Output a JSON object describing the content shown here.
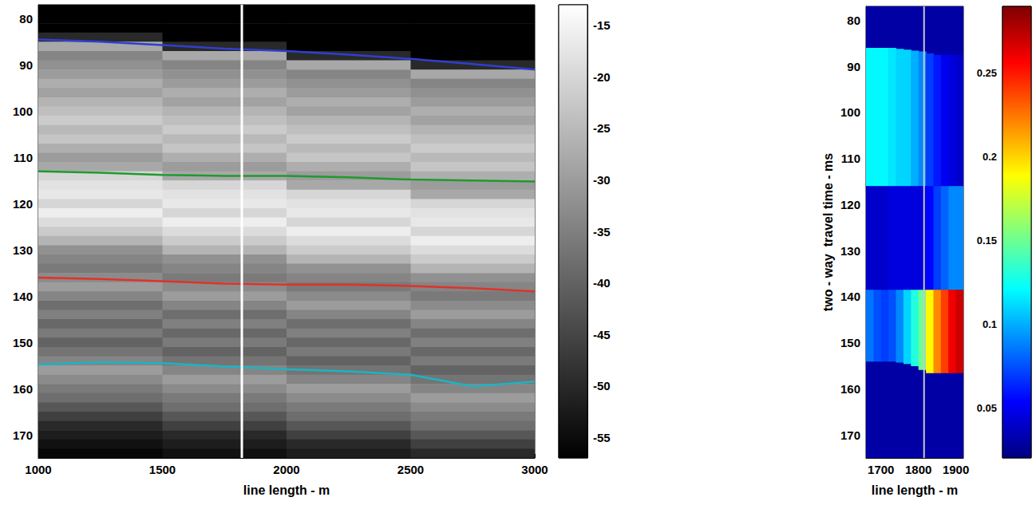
{
  "chart_data": [
    {
      "type": "heatmap",
      "x_label": "line length - m",
      "xlim": [
        1000,
        3000
      ],
      "xticks": [
        1000,
        1500,
        2000,
        2500,
        3000
      ],
      "ylim": [
        77,
        175
      ],
      "yticks": [
        80,
        90,
        100,
        110,
        120,
        130,
        140,
        150,
        160,
        170
      ],
      "grid": false,
      "x_edges": [
        1000,
        1500,
        2000,
        2500,
        3000
      ],
      "y_edges": [
        77,
        79,
        81,
        83,
        85,
        87,
        89,
        91,
        93,
        95,
        97,
        99,
        101,
        103,
        105,
        107,
        109,
        111,
        113,
        115,
        117,
        119,
        121,
        123,
        125,
        127,
        129,
        131,
        133,
        135,
        137,
        139,
        141,
        143,
        145,
        147,
        149,
        151,
        153,
        155,
        157,
        159,
        161,
        163,
        165,
        167,
        169,
        171,
        173,
        175
      ],
      "cells": [
        [
          -57,
          -57,
          -57,
          -57
        ],
        [
          -57,
          -57,
          -57,
          -57
        ],
        [
          -57,
          -57,
          -57,
          -57
        ],
        [
          -50,
          -57,
          -57,
          -57
        ],
        [
          -28,
          -50,
          -57,
          -57
        ],
        [
          -34,
          -28,
          -50,
          -57
        ],
        [
          -32,
          -34,
          -28,
          -50
        ],
        [
          -30,
          -32,
          -34,
          -28
        ],
        [
          -27,
          -30,
          -32,
          -34
        ],
        [
          -29,
          -27,
          -30,
          -32
        ],
        [
          -26,
          -29,
          -27,
          -30
        ],
        [
          -24,
          -26,
          -29,
          -27
        ],
        [
          -22,
          -24,
          -26,
          -29
        ],
        [
          -25,
          -22,
          -24,
          -26
        ],
        [
          -23,
          -25,
          -22,
          -24
        ],
        [
          -27,
          -23,
          -25,
          -22
        ],
        [
          -30,
          -27,
          -23,
          -25
        ],
        [
          -28,
          -30,
          -27,
          -23
        ],
        [
          -20,
          -28,
          -30,
          -27
        ],
        [
          -18,
          -20,
          -28,
          -30
        ],
        [
          -17,
          -18,
          -20,
          -28
        ],
        [
          -20,
          -17,
          -18,
          -20
        ],
        [
          -16,
          -20,
          -17,
          -18
        ],
        [
          -19,
          -16,
          -20,
          -17
        ],
        [
          -22,
          -19,
          -16,
          -20
        ],
        [
          -26,
          -22,
          -19,
          -16
        ],
        [
          -32,
          -26,
          -22,
          -19
        ],
        [
          -34,
          -32,
          -26,
          -22
        ],
        [
          -36,
          -34,
          -32,
          -26
        ],
        [
          -33,
          -36,
          -34,
          -32
        ],
        [
          -30,
          -33,
          -36,
          -34
        ],
        [
          -34,
          -30,
          -33,
          -36
        ],
        [
          -38,
          -34,
          -30,
          -33
        ],
        [
          -35,
          -38,
          -34,
          -30
        ],
        [
          -39,
          -35,
          -38,
          -34
        ],
        [
          -36,
          -39,
          -35,
          -38
        ],
        [
          -40,
          -36,
          -39,
          -35
        ],
        [
          -37,
          -40,
          -36,
          -39
        ],
        [
          -34,
          -37,
          -40,
          -36
        ],
        [
          -30,
          -34,
          -37,
          -40
        ],
        [
          -33,
          -30,
          -34,
          -37
        ],
        [
          -36,
          -33,
          -30,
          -34
        ],
        [
          -38,
          -36,
          -33,
          -30
        ],
        [
          -42,
          -38,
          -36,
          -33
        ],
        [
          -46,
          -42,
          -38,
          -36
        ],
        [
          -50,
          -46,
          -42,
          -38
        ],
        [
          -52,
          -50,
          -46,
          -42
        ],
        [
          -54,
          -52,
          -50,
          -46
        ],
        [
          -56,
          -54,
          -52,
          -50
        ]
      ],
      "clim": [
        -57,
        -13
      ],
      "cticks": [
        -15,
        -20,
        -25,
        -30,
        -35,
        -40,
        -45,
        -50,
        -55
      ],
      "lines": [
        {
          "color": "#2f3fd0",
          "x": [
            1000,
            1250,
            1500,
            1750,
            2000,
            2250,
            2500,
            2750,
            3000
          ],
          "y": [
            84.5,
            85,
            85.7,
            86.5,
            87,
            87.8,
            88.7,
            89.8,
            91
          ]
        },
        {
          "color": "#1f9a2e",
          "x": [
            1000,
            1250,
            1500,
            1750,
            2000,
            2250,
            2500,
            2750,
            3000
          ],
          "y": [
            113,
            113.3,
            113.8,
            114,
            114,
            114.3,
            114.8,
            115,
            115.2
          ]
        },
        {
          "color": "#e0322a",
          "x": [
            1000,
            1250,
            1500,
            1750,
            2000,
            2250,
            2500,
            2750,
            3000
          ],
          "y": [
            136,
            136.3,
            136.8,
            137.3,
            137.5,
            137.5,
            137.8,
            138.3,
            139
          ]
        },
        {
          "color": "#19b5c4",
          "x": [
            1000,
            1250,
            1500,
            1750,
            2000,
            2250,
            2500,
            2750,
            3000
          ],
          "y": [
            154.8,
            154.3,
            154.5,
            155.2,
            155.8,
            156.3,
            157,
            159.5,
            158.5
          ]
        }
      ],
      "vertical_line": {
        "x": 1820,
        "color": "#ffffff"
      }
    },
    {
      "type": "heatmap",
      "x_label": "line length - m",
      "y_label": "two - way  travel time - ms",
      "xlim": [
        1660,
        1920
      ],
      "xticks": [
        1700,
        1800,
        1900
      ],
      "ylim": [
        77,
        175
      ],
      "yticks": [
        80,
        90,
        100,
        110,
        120,
        130,
        140,
        150,
        160,
        170
      ],
      "grid": false,
      "x_edges": [
        1660,
        1680,
        1700,
        1720,
        1740,
        1760,
        1780,
        1800,
        1820,
        1840,
        1860,
        1880,
        1900,
        1920
      ],
      "background": 0.03,
      "layers": [
        {
          "top": [
            86,
            86,
            86,
            86,
            86.2,
            86.4,
            86.6,
            86.8,
            87.2,
            87.5,
            87.5,
            87.5,
            87.5
          ],
          "bottom": [
            116,
            116,
            116,
            116,
            116,
            116,
            116,
            116,
            116,
            116,
            116,
            116,
            116
          ],
          "values": [
            0.12,
            0.12,
            0.12,
            0.115,
            0.11,
            0.11,
            0.1,
            0.09,
            0.07,
            0.06,
            0.05,
            0.045,
            0.04
          ]
        },
        {
          "top": [
            116,
            116,
            116,
            116,
            116,
            116,
            116,
            116,
            116,
            116,
            116,
            116,
            116
          ],
          "bottom": [
            138.5,
            138.5,
            138.5,
            138.5,
            138.5,
            138.5,
            138.5,
            138.5,
            138.5,
            138.5,
            138.5,
            138.5,
            138.5
          ],
          "values": [
            0.04,
            0.04,
            0.04,
            0.045,
            0.045,
            0.045,
            0.045,
            0.045,
            0.055,
            0.07,
            0.08,
            0.09,
            0.09
          ]
        },
        {
          "top": [
            138.5,
            138.5,
            138.5,
            138.5,
            138.5,
            138.5,
            138.5,
            138.5,
            138.5,
            138.5,
            138.5,
            138.5,
            138.5
          ],
          "bottom": [
            154,
            154,
            154,
            154,
            154.2,
            154.5,
            155,
            155.8,
            156.5,
            156.5,
            156.5,
            156.5,
            156.5
          ],
          "values": [
            0.085,
            0.075,
            0.07,
            0.075,
            0.09,
            0.11,
            0.13,
            0.15,
            0.19,
            0.22,
            0.24,
            0.26,
            0.27
          ]
        }
      ],
      "clim": [
        0.02,
        0.29
      ],
      "cticks": [
        0.05,
        0.1,
        0.15,
        0.2,
        0.25
      ],
      "vertical_line": {
        "x": 1815,
        "color": "#c8c8c8"
      }
    }
  ]
}
